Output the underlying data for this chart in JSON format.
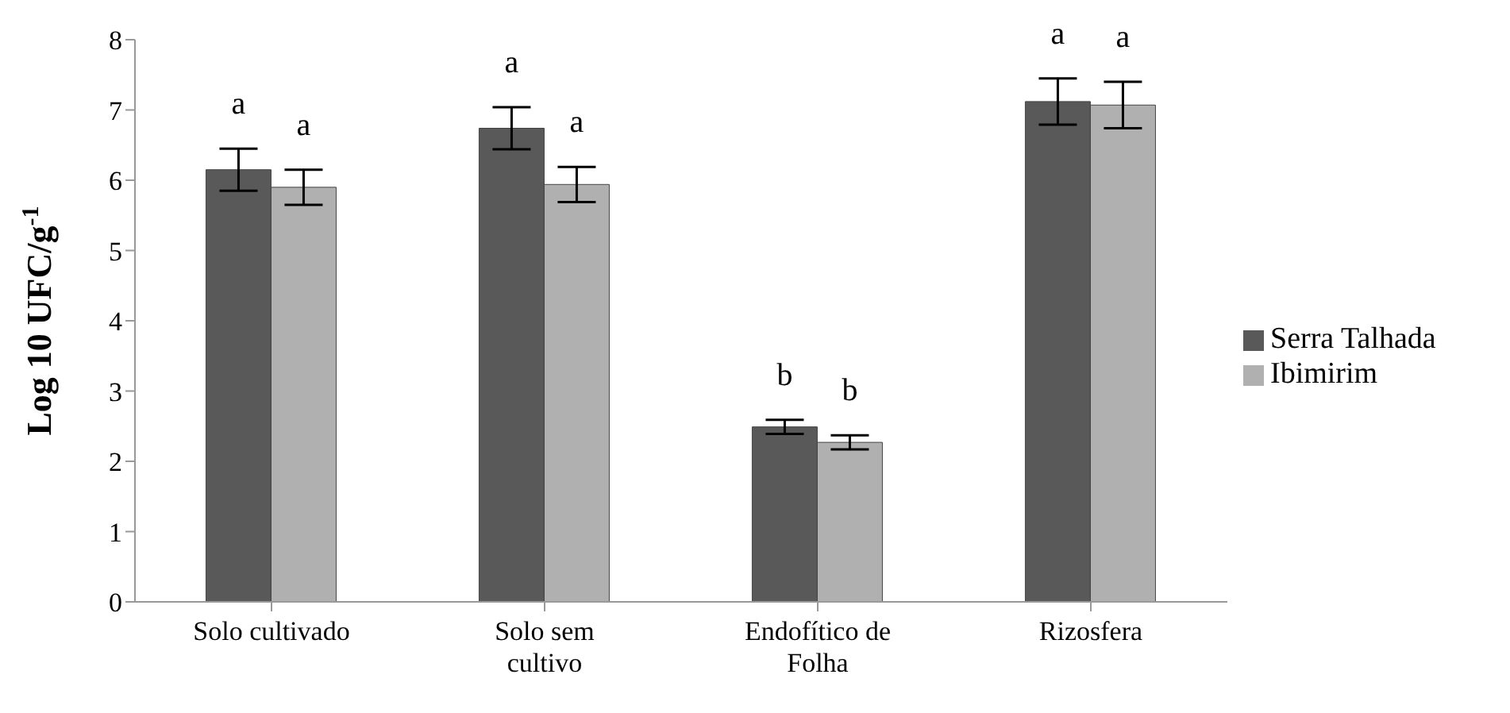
{
  "chart_data": {
    "type": "bar",
    "ylabel": "Log 10 UFC/g$^{-1}$",
    "categories": [
      "Solo cultivado",
      "Solo sem cultivo",
      "Endofítico de Folha",
      "Rizosfera"
    ],
    "series": [
      {
        "name": "Serra Talhada",
        "color": "#595959",
        "values": [
          6.15,
          6.74,
          2.49,
          7.12
        ],
        "errors": [
          0.3,
          0.3,
          0.1,
          0.33
        ],
        "value_labels": [
          "a",
          "a",
          "b",
          "a"
        ]
      },
      {
        "name": "Ibimirim",
        "color": "#b0b0b0",
        "values": [
          5.9,
          5.94,
          2.27,
          7.07
        ],
        "errors": [
          0.25,
          0.25,
          0.1,
          0.33
        ],
        "value_labels": [
          "a",
          "a",
          "b",
          "a"
        ]
      }
    ],
    "ylim": [
      0,
      8
    ],
    "yticks": [
      0,
      1,
      2,
      3,
      4,
      5,
      6,
      7,
      8
    ],
    "legend": "right"
  }
}
